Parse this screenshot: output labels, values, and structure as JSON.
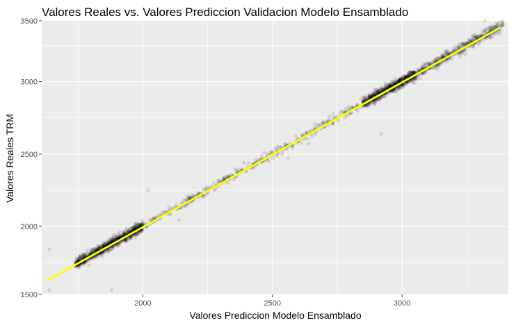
{
  "chart_data": {
    "type": "scatter",
    "title": "Valores Reales vs. Valores Prediccion Validacion Modelo Ensamblado",
    "xlabel": "Valores Prediccion Modelo Ensamblado",
    "ylabel": "Valores Reales TRM",
    "xlim": [
      1610,
      3410
    ],
    "ylim": [
      1530,
      3420
    ],
    "x_ticks": [
      2000,
      2500,
      3000
    ],
    "y_ticks": [
      1500,
      2000,
      2500,
      3000,
      3500
    ],
    "x_tick_labels": [
      "2000",
      "2500",
      "3000"
    ],
    "y_tick_labels": [
      "1500",
      "2000",
      "2500",
      "3000",
      "3500"
    ],
    "grid": true,
    "legend": "none",
    "panel_background": "#ebebeb",
    "grid_color": "#ffffff",
    "point_color": "#000000",
    "point_opacity": 0.1,
    "fit_line": {
      "color": "#ffff00",
      "x": [
        1630,
        3380
      ],
      "y": [
        1625,
        3375
      ]
    },
    "clusters": [
      {
        "x_range": [
          1740,
          2000
        ],
        "spread": 18,
        "count": 900
      },
      {
        "x_range": [
          2000,
          2250
        ],
        "spread": 14,
        "count": 120
      },
      {
        "x_range": [
          2250,
          2700
        ],
        "spread": 16,
        "count": 200
      },
      {
        "x_range": [
          2700,
          2850
        ],
        "spread": 18,
        "count": 60
      },
      {
        "x_range": [
          2850,
          3050
        ],
        "spread": 18,
        "count": 700
      },
      {
        "x_range": [
          3050,
          3390
        ],
        "spread": 18,
        "count": 450
      }
    ],
    "outliers": [
      {
        "x": 1640,
        "y": 1560
      },
      {
        "x": 1640,
        "y": 1840
      },
      {
        "x": 1880,
        "y": 1560
      },
      {
        "x": 2020,
        "y": 2250
      },
      {
        "x": 2920,
        "y": 2640
      },
      {
        "x": 2140,
        "y": 2045
      },
      {
        "x": 2560,
        "y": 2470
      },
      {
        "x": 2640,
        "y": 2570
      },
      {
        "x": 3220,
        "y": 3260
      },
      {
        "x": 3320,
        "y": 3420
      }
    ]
  }
}
